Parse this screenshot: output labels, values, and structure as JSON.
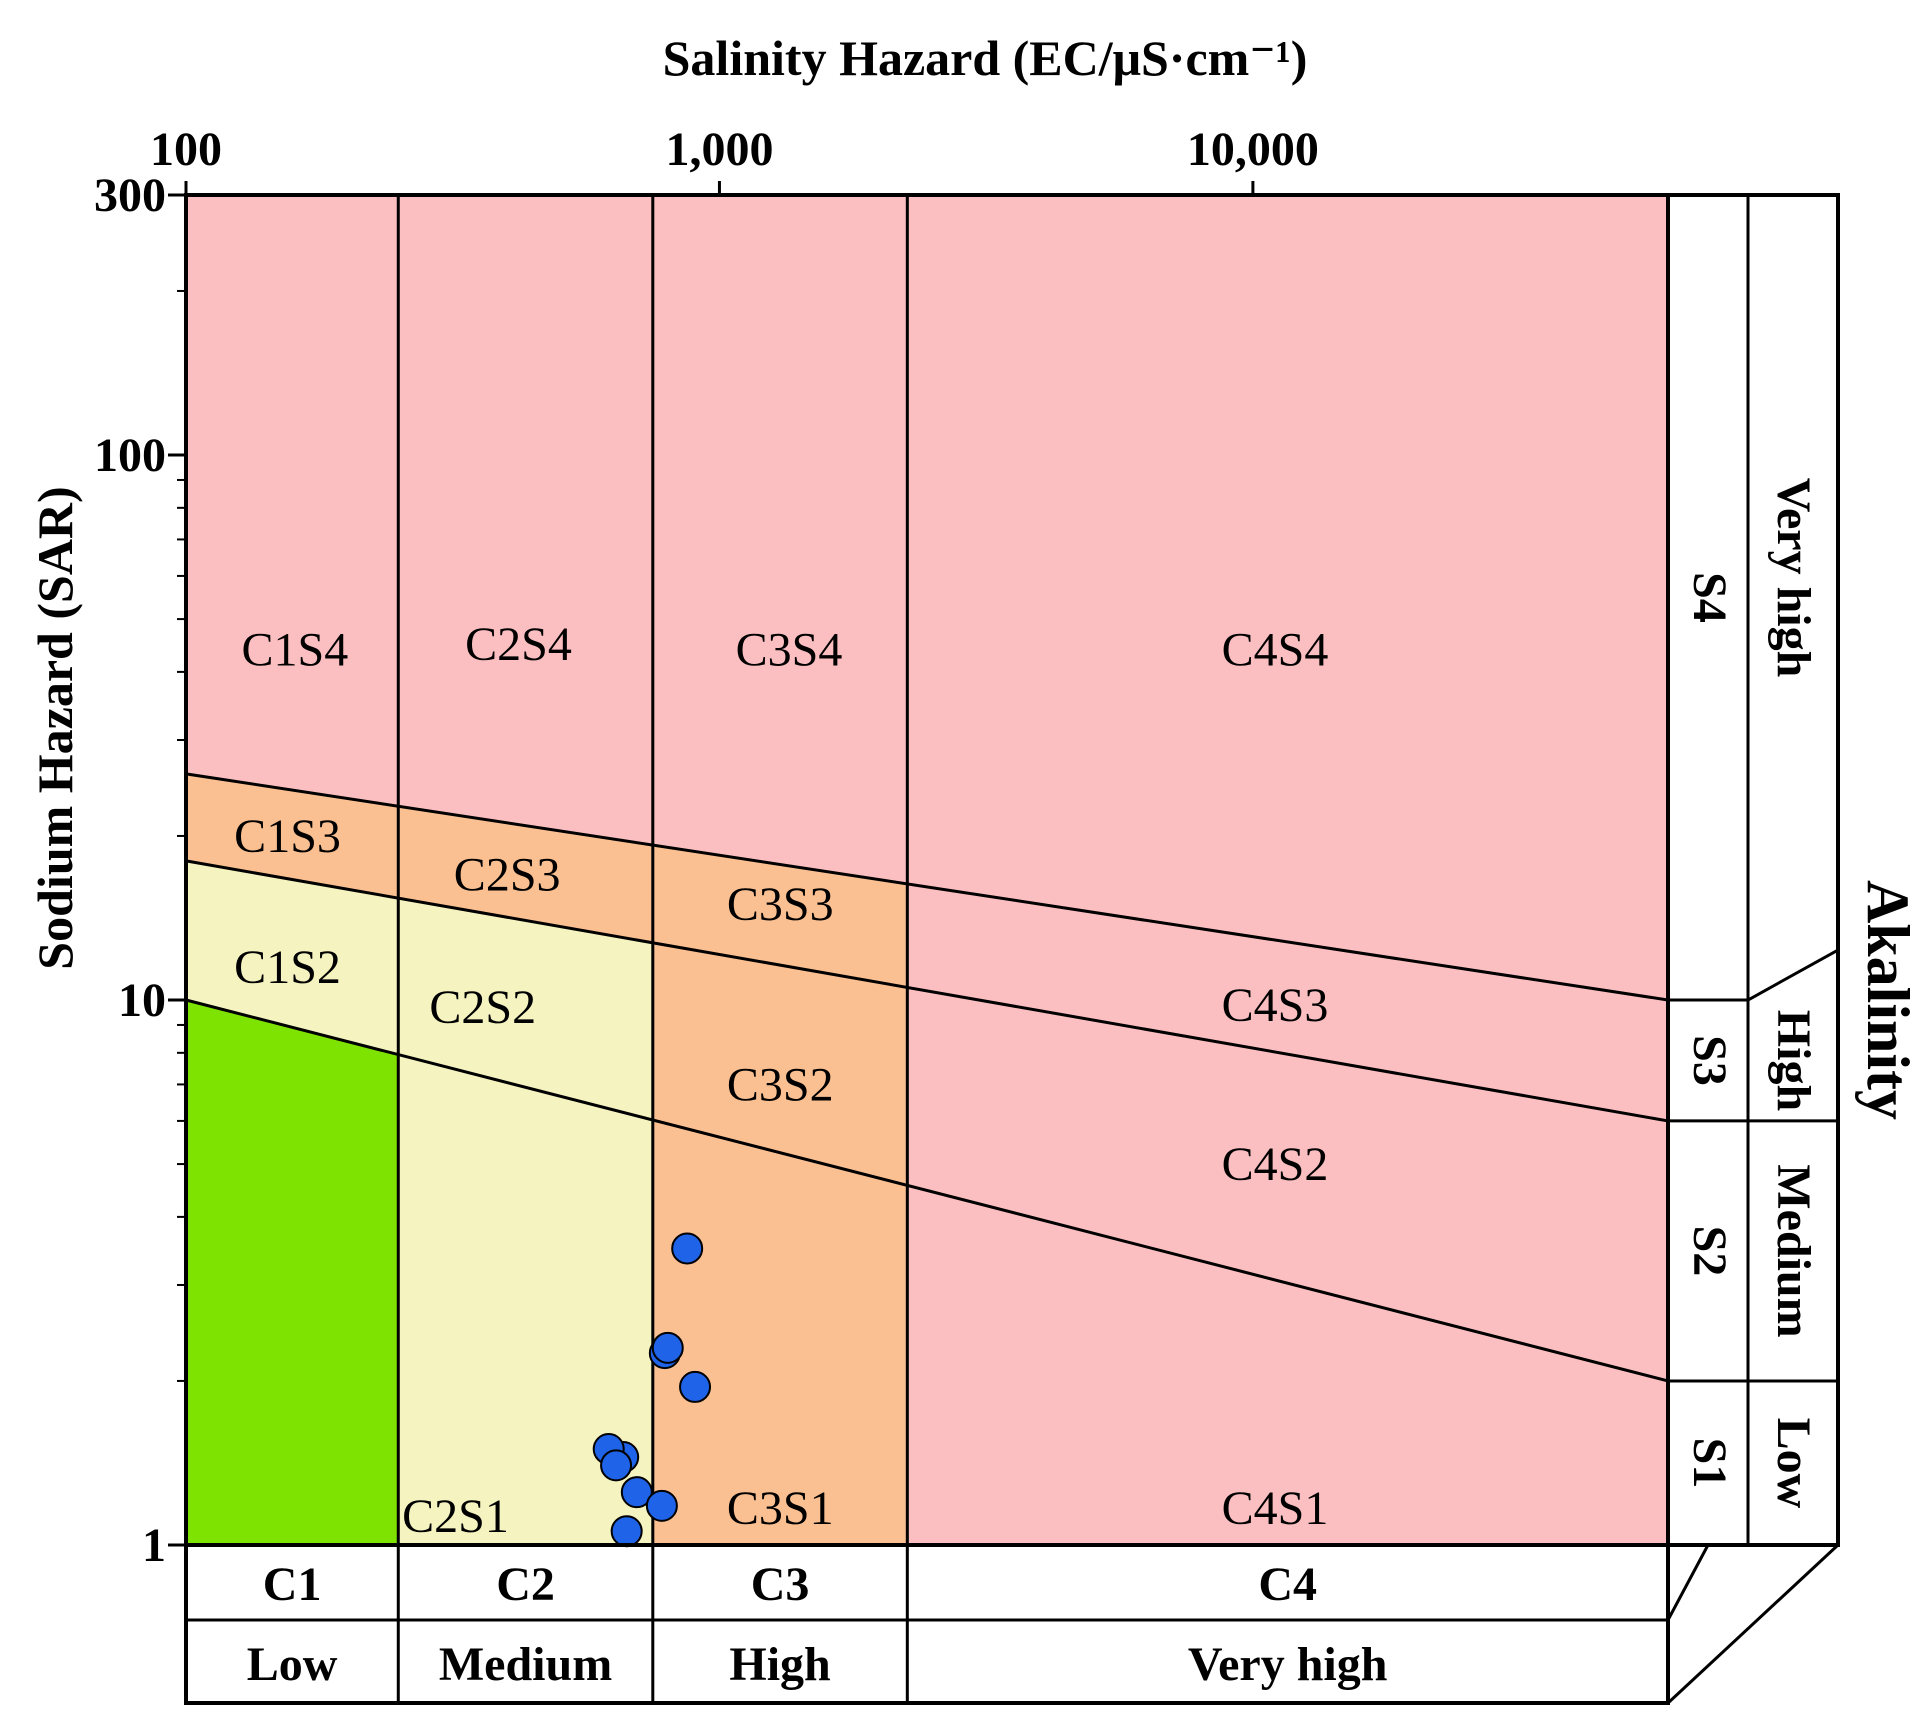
{
  "chart_data": {
    "type": "scatter",
    "title": "Salinity Hazard (EC/μS·cm⁻¹)",
    "xlabel": "Salinity Hazard (EC/μS·cm⁻¹)",
    "ylabel": "Sodium Hazard (SAR)",
    "xscale": "log",
    "yscale": "log",
    "xlim": [
      100,
      60000
    ],
    "ylim": [
      1,
      300
    ],
    "x_ticks": [
      {
        "value": 100,
        "label": "100"
      },
      {
        "value": 1000,
        "label": "1,000"
      },
      {
        "value": 10000,
        "label": "10,000"
      }
    ],
    "y_ticks": [
      {
        "value": 1,
        "label": "1"
      },
      {
        "value": 10,
        "label": "10"
      },
      {
        "value": 100,
        "label": "100"
      },
      {
        "value": 300,
        "label": "300"
      }
    ],
    "ec_boundaries": [
      250,
      750,
      2250
    ],
    "sar_boundaries": [
      {
        "name": "S1/S2",
        "ec": [
          100,
          60000
        ],
        "sar": [
          10,
          2
        ]
      },
      {
        "name": "S2/S3",
        "ec": [
          100,
          60000
        ],
        "sar": [
          18,
          6
        ]
      },
      {
        "name": "S3/S4",
        "ec": [
          100,
          60000
        ],
        "sar": [
          26,
          10
        ]
      }
    ],
    "zone_colors": {
      "C1S1": "#7ee300",
      "low_medium": "#f5f3c0",
      "medium_high": "#fbc092",
      "high": "#fbbfc1"
    },
    "zone_labels": [
      {
        "text": "C1S4",
        "ec": 160,
        "sar": 44
      },
      {
        "text": "C2S4",
        "ec": 420,
        "sar": 45
      },
      {
        "text": "C3S4",
        "ec": 1350,
        "sar": 44
      },
      {
        "text": "C4S4",
        "ec": 11000,
        "sar": 44
      },
      {
        "text": "C1S3",
        "ec": 155,
        "sar": 20
      },
      {
        "text": "C2S3",
        "ec": 400,
        "sar": 17
      },
      {
        "text": "C3S3",
        "ec": 1300,
        "sar": 15
      },
      {
        "text": "C1S2",
        "ec": 155,
        "sar": 11.5
      },
      {
        "text": "C2S2",
        "ec": 360,
        "sar": 9.7
      },
      {
        "text": "C3S2",
        "ec": 1300,
        "sar": 7
      },
      {
        "text": "C4S3",
        "ec": 11000,
        "sar": 9.8
      },
      {
        "text": "C4S2",
        "ec": 11000,
        "sar": 5
      },
      {
        "text": "C2S1",
        "ec": 320,
        "sar": 1.13
      },
      {
        "text": "C3S1",
        "ec": 1300,
        "sar": 1.17
      },
      {
        "text": "C4S1",
        "ec": 11000,
        "sar": 1.17
      }
    ],
    "series": [
      {
        "name": "samples",
        "color": "#1f63e8",
        "points": [
          {
            "x": 870,
            "y": 3.5
          },
          {
            "x": 790,
            "y": 2.25
          },
          {
            "x": 800,
            "y": 2.3
          },
          {
            "x": 900,
            "y": 1.95
          },
          {
            "x": 660,
            "y": 1.45
          },
          {
            "x": 620,
            "y": 1.5
          },
          {
            "x": 640,
            "y": 1.4
          },
          {
            "x": 700,
            "y": 1.25
          },
          {
            "x": 780,
            "y": 1.18
          },
          {
            "x": 670,
            "y": 1.06
          }
        ]
      }
    ]
  },
  "bottom_scale": {
    "classes": [
      "C1",
      "C2",
      "C3",
      "C4"
    ],
    "levels": [
      "Low",
      "Medium",
      "High",
      "Very high"
    ]
  },
  "right_scale": {
    "classes": [
      "S4",
      "S3",
      "S2",
      "S1"
    ],
    "levels": [
      "Very high",
      "High",
      "Medium",
      "Low"
    ],
    "title": "Akalinity"
  }
}
